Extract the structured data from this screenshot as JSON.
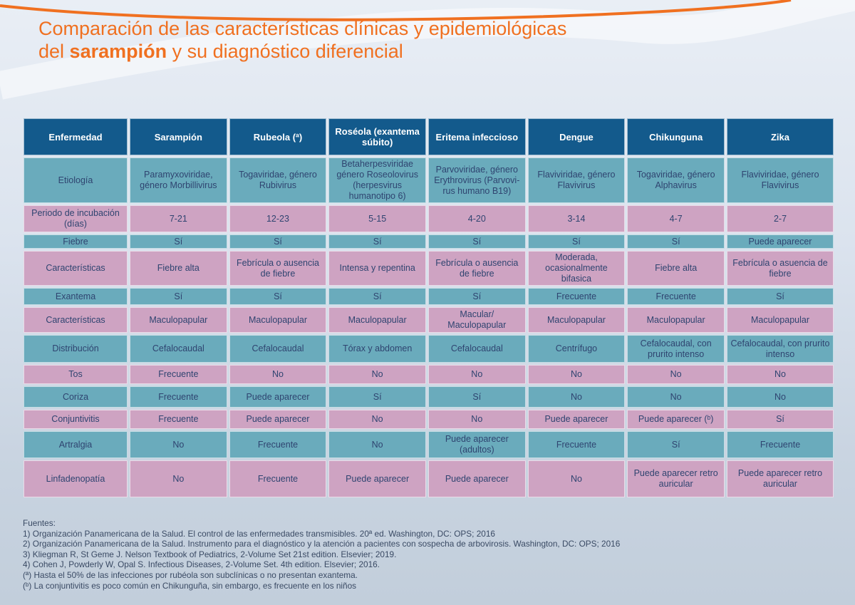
{
  "colors": {
    "accent": "#f07020",
    "header": "#135a8c",
    "teal_row": "#6aabbc",
    "pink_row": "#cea3c2"
  },
  "title": {
    "line1": "Comparación de las características clínicas y epidemiológicas",
    "line2_pre": "del ",
    "line2_bold": "sarampión",
    "line2_post": " y su diagnóstico diferencial"
  },
  "table": {
    "headers": [
      "Enfermedad",
      "Sarampión",
      "Rubeola (ª)",
      "Roséola (exantema súbito)",
      "Eritema infeccioso",
      "Dengue",
      "Chikunguna",
      "Zika"
    ],
    "rows": [
      {
        "style": "teal",
        "h": 48,
        "cells": [
          "Etiología",
          "Paramyxoviridae, género Morbillivirus",
          "Togaviridae, género Rubivirus",
          "Betaherpesviridae género Roseolovirus (herpesvirus humanotipo 6)",
          "Parvoviridae, género Erythrovirus (Parvovi-rus humano B19)",
          "Flaviviridae, género Flavivirus",
          "Togaviridae, género Alphavirus",
          "Flaviviridae, género Flavivirus"
        ]
      },
      {
        "style": "pink",
        "h": 38,
        "cells": [
          "Periodo de incubación (días)",
          "7-21",
          "12-23",
          "5-15",
          "4-20",
          "3-14",
          "4-7",
          "2-7"
        ]
      },
      {
        "style": "teal",
        "h": 20,
        "cells": [
          "Fiebre",
          "Sí",
          "Sí",
          "Sí",
          "Sí",
          "Sí",
          "Sí",
          "Puede aparecer"
        ]
      },
      {
        "style": "pink",
        "h": 36,
        "cells": [
          "Características",
          "Fiebre alta",
          "Febrícula o ausencia de fiebre",
          "Intensa y repentina",
          "Febrícula o ausencia de fiebre",
          "Moderada, ocasionalmente bifasica",
          "Fiebre alta",
          "Febrícula o asuencia de fiebre"
        ]
      },
      {
        "style": "teal",
        "h": 24,
        "cells": [
          "Exantema",
          "Sí",
          "Sí",
          "Sí",
          "Sí",
          "Frecuente",
          "Frecuente",
          "Sí"
        ]
      },
      {
        "style": "pink",
        "h": 36,
        "cells": [
          "Características",
          "Maculopapular",
          "Maculopapular",
          "Maculopapular",
          "Macular/ Maculopapular",
          "Maculopapular",
          "Maculopapular",
          "Maculopapular"
        ]
      },
      {
        "style": "teal",
        "h": 39,
        "cells": [
          "Distribución",
          "Cefalocaudal",
          "Cefalocaudal",
          "Tórax y abdomen",
          "Cefalocaudal",
          "Centrífugo",
          "Cefalocaudal, con prurito intenso",
          "Cefalocaudal, con prurito intenso"
        ]
      },
      {
        "style": "pink",
        "h": 27,
        "cells": [
          "Tos",
          "Frecuente",
          "No",
          "No",
          "No",
          "No",
          "No",
          "No"
        ]
      },
      {
        "style": "teal",
        "h": 30,
        "cells": [
          "Coriza",
          "Frecuente",
          "Puede aparecer",
          "Sí",
          "Sí",
          "No",
          "No",
          "No"
        ]
      },
      {
        "style": "pink",
        "h": 27,
        "cells": [
          "Conjuntivitis",
          "Frecuente",
          "Puede aparecer",
          "No",
          "No",
          "Puede aparecer",
          "Puede aparecer (ᵇ)",
          "Sí"
        ]
      },
      {
        "style": "teal",
        "h": 38,
        "cells": [
          "Artralgia",
          "No",
          "Frecuente",
          "No",
          "Puede aparecer (adultos)",
          "Frecuente",
          "Sí",
          "Frecuente"
        ]
      },
      {
        "style": "pink",
        "h": 52,
        "cells": [
          "Linfadenopatía",
          "No",
          "Frecuente",
          "Puede aparecer",
          "Puede aparecer",
          "No",
          "Puede aparecer retro auricular",
          "Puede aparecer retro auricular"
        ]
      }
    ]
  },
  "sources": {
    "heading": "Fuentes:",
    "items": [
      "1) Organización Panamericana de la Salud. El control de las enfermedades transmisibles. 20ª ed. Washington, DC: OPS; 2016",
      "2) Organización Panamericana de la Salud. Instrumento para el diagnóstico y la atención a pacientes con sospecha de arbovirosis. Washington, DC: OPS; 2016",
      "3) Kliegman R, St Geme J. Nelson Textbook of Pediatrics, 2-Volume Set 21st edition. Elsevier;  2019.",
      "4) Cohen J, Powderly W, Opal S. Infectious Diseases, 2-Volume Set. 4th edition. Elsevier; 2016.",
      "(ª) Hasta el 50% de las infecciones por rubéola son subclínicas o no presentan exantema.",
      "(ᵇ) La conjuntivitis es poco común en Chikunguña, sin embargo, es frecuente en los niños"
    ]
  }
}
